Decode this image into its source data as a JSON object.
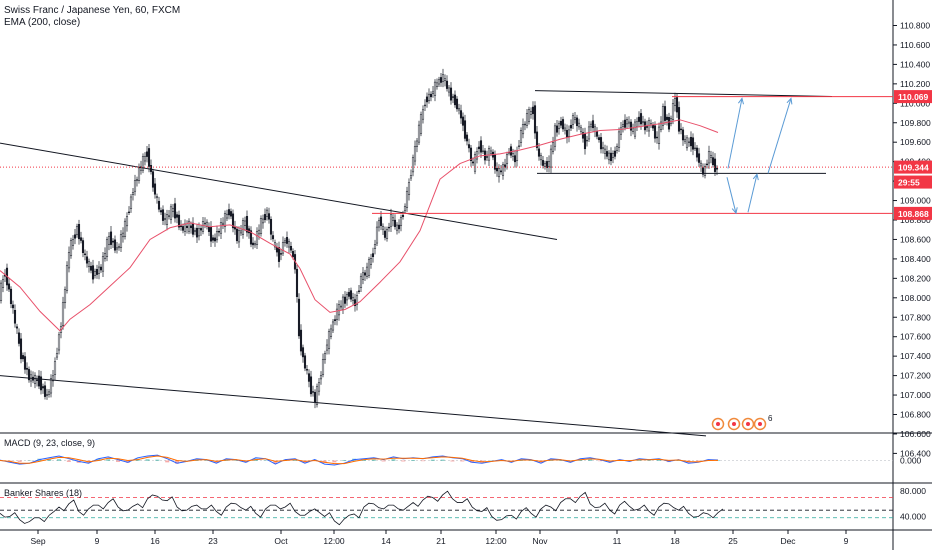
{
  "header": {
    "title": "Swiss Franc / Japanese Yen, 60, FXCM",
    "indicator": "EMA (200, close)"
  },
  "chart_data": [
    {
      "type": "candlestick",
      "symbol": "Swiss Franc / Japanese Yen",
      "interval": "60",
      "source": "FXCM",
      "y_ticks": [
        110.8,
        110.6,
        110.4,
        110.2,
        110.0,
        109.8,
        109.6,
        109.4,
        109.2,
        109.0,
        108.8,
        108.6,
        108.4,
        108.2,
        108.0,
        107.8,
        107.6,
        107.4,
        107.2,
        107.0,
        106.8,
        106.6,
        106.4
      ],
      "y_tick_labels": [
        "110.800",
        "110.600",
        "110.400",
        "110.200",
        "110.000",
        "109.800",
        "109.600",
        "109.400",
        "109.200",
        "109.000",
        "108.800",
        "108.600",
        "108.400",
        "108.200",
        "108.000",
        "107.800",
        "107.600",
        "107.400",
        "107.200",
        "107.000",
        "106.800",
        "106.600",
        "106.400"
      ],
      "ylim": [
        106.38,
        110.88
      ],
      "x_ticks": [
        "Sep",
        "9",
        "16",
        "23",
        "Oct",
        "12:00",
        "14",
        "21",
        "12:00",
        "Nov",
        "11",
        "18",
        "25",
        "Dec",
        "9"
      ],
      "price_path": [
        [
          0,
          108.02
        ],
        [
          6,
          108.27
        ],
        [
          14,
          107.86
        ],
        [
          22,
          107.42
        ],
        [
          30,
          107.18
        ],
        [
          40,
          107.14
        ],
        [
          48,
          106.98
        ],
        [
          54,
          107.21
        ],
        [
          62,
          107.74
        ],
        [
          70,
          108.48
        ],
        [
          78,
          108.72
        ],
        [
          86,
          108.41
        ],
        [
          94,
          108.24
        ],
        [
          102,
          108.31
        ],
        [
          110,
          108.63
        ],
        [
          118,
          108.49
        ],
        [
          126,
          108.74
        ],
        [
          134,
          109.12
        ],
        [
          142,
          109.36
        ],
        [
          148,
          109.5
        ],
        [
          154,
          109.16
        ],
        [
          160,
          108.91
        ],
        [
          166,
          108.79
        ],
        [
          174,
          108.92
        ],
        [
          182,
          108.71
        ],
        [
          190,
          108.74
        ],
        [
          198,
          108.66
        ],
        [
          206,
          108.78
        ],
        [
          214,
          108.58
        ],
        [
          222,
          108.74
        ],
        [
          230,
          108.9
        ],
        [
          238,
          108.61
        ],
        [
          246,
          108.79
        ],
        [
          254,
          108.52
        ],
        [
          262,
          108.77
        ],
        [
          268,
          108.89
        ],
        [
          274,
          108.57
        ],
        [
          280,
          108.42
        ],
        [
          286,
          108.61
        ],
        [
          292,
          108.49
        ],
        [
          296,
          108.33
        ],
        [
          300,
          107.62
        ],
        [
          304,
          107.38
        ],
        [
          308,
          107.22
        ],
        [
          312,
          107.06
        ],
        [
          316,
          106.95
        ],
        [
          320,
          107.13
        ],
        [
          326,
          107.45
        ],
        [
          332,
          107.68
        ],
        [
          338,
          107.86
        ],
        [
          344,
          107.96
        ],
        [
          350,
          108.05
        ],
        [
          356,
          107.93
        ],
        [
          362,
          108.21
        ],
        [
          368,
          108.28
        ],
        [
          374,
          108.47
        ],
        [
          380,
          108.82
        ],
        [
          386,
          108.62
        ],
        [
          392,
          108.83
        ],
        [
          398,
          108.7
        ],
        [
          404,
          108.87
        ],
        [
          408,
          109.06
        ],
        [
          414,
          109.43
        ],
        [
          420,
          109.74
        ],
        [
          426,
          110.03
        ],
        [
          432,
          110.09
        ],
        [
          438,
          110.21
        ],
        [
          444,
          110.27
        ],
        [
          450,
          110.11
        ],
        [
          456,
          110.02
        ],
        [
          462,
          109.86
        ],
        [
          468,
          109.6
        ],
        [
          474,
          109.35
        ],
        [
          480,
          109.58
        ],
        [
          486,
          109.44
        ],
        [
          492,
          109.51
        ],
        [
          498,
          109.28
        ],
        [
          504,
          109.32
        ],
        [
          510,
          109.53
        ],
        [
          516,
          109.41
        ],
        [
          522,
          109.71
        ],
        [
          528,
          109.86
        ],
        [
          534,
          109.94
        ],
        [
          538,
          109.52
        ],
        [
          544,
          109.36
        ],
        [
          550,
          109.38
        ],
        [
          556,
          109.72
        ],
        [
          562,
          109.81
        ],
        [
          568,
          109.66
        ],
        [
          574,
          109.86
        ],
        [
          580,
          109.76
        ],
        [
          586,
          109.58
        ],
        [
          592,
          109.81
        ],
        [
          598,
          109.66
        ],
        [
          604,
          109.52
        ],
        [
          610,
          109.44
        ],
        [
          616,
          109.49
        ],
        [
          622,
          109.76
        ],
        [
          628,
          109.82
        ],
        [
          634,
          109.71
        ],
        [
          640,
          109.86
        ],
        [
          646,
          109.75
        ],
        [
          652,
          109.79
        ],
        [
          658,
          109.62
        ],
        [
          664,
          109.92
        ],
        [
          670,
          109.77
        ],
        [
          676,
          110.06
        ],
        [
          680,
          109.76
        ],
        [
          686,
          109.59
        ],
        [
          692,
          109.61
        ],
        [
          698,
          109.47
        ],
        [
          704,
          109.27
        ],
        [
          710,
          109.48
        ],
        [
          714,
          109.38
        ],
        [
          718,
          109.31
        ]
      ],
      "ema_path": [
        [
          0,
          108.28
        ],
        [
          20,
          108.11
        ],
        [
          40,
          107.86
        ],
        [
          60,
          107.66
        ],
        [
          70,
          107.78
        ],
        [
          90,
          107.93
        ],
        [
          110,
          108.12
        ],
        [
          130,
          108.31
        ],
        [
          150,
          108.6
        ],
        [
          170,
          108.72
        ],
        [
          190,
          108.77
        ],
        [
          210,
          108.73
        ],
        [
          230,
          108.75
        ],
        [
          250,
          108.68
        ],
        [
          270,
          108.56
        ],
        [
          290,
          108.45
        ],
        [
          300,
          108.3
        ],
        [
          315,
          107.98
        ],
        [
          330,
          107.85
        ],
        [
          345,
          107.88
        ],
        [
          360,
          107.96
        ],
        [
          380,
          108.16
        ],
        [
          400,
          108.37
        ],
        [
          420,
          108.69
        ],
        [
          440,
          109.22
        ],
        [
          460,
          109.38
        ],
        [
          480,
          109.46
        ],
        [
          500,
          109.48
        ],
        [
          520,
          109.52
        ],
        [
          540,
          109.57
        ],
        [
          560,
          109.63
        ],
        [
          580,
          109.68
        ],
        [
          600,
          109.72
        ],
        [
          620,
          109.73
        ],
        [
          640,
          109.76
        ],
        [
          660,
          109.79
        ],
        [
          680,
          109.83
        ],
        [
          700,
          109.77
        ],
        [
          718,
          109.7
        ]
      ],
      "trendlines": [
        {
          "from": [
            0,
            109.59
          ],
          "to": [
            557,
            108.6
          ]
        },
        {
          "from": [
            0,
            107.2
          ],
          "to": [
            706,
            106.58
          ]
        },
        {
          "from": [
            535,
            110.13
          ],
          "to": [
            832,
            110.07
          ]
        },
        {
          "from": [
            537,
            109.28
          ],
          "to": [
            826,
            109.28
          ]
        }
      ],
      "horizontal_lines": [
        {
          "price": 110.069,
          "label": "110.069",
          "color": "#f23645"
        },
        {
          "price": 108.868,
          "label": "108.868",
          "color": "#f23645"
        },
        {
          "price": 109.344,
          "label": "109.344",
          "color": "#f23645",
          "dotted": true
        }
      ],
      "projection_arrows": [
        {
          "from": [
            728,
            109.33
          ],
          "to": [
            742,
            110.05
          ]
        },
        {
          "from": [
            768,
            109.28
          ],
          "to": [
            791,
            110.05
          ]
        },
        {
          "from": [
            727,
            109.24
          ],
          "to": [
            736,
            108.87
          ]
        },
        {
          "from": [
            748,
            108.88
          ],
          "to": [
            757,
            109.27
          ]
        }
      ],
      "price_labels": [
        {
          "text": "110.069",
          "price": 110.069,
          "color": "#f23645"
        },
        {
          "text": "109.344",
          "price": 109.344,
          "color": "#f23645"
        },
        {
          "text": "29:55",
          "price": 109.19,
          "color": "#f23645"
        },
        {
          "text": "108.868",
          "price": 108.868,
          "color": "#f23645"
        }
      ],
      "annotation": "6"
    },
    {
      "type": "line",
      "name": "MACD (9, 23, close, 9)",
      "y_tick_labels": [
        "0.000"
      ],
      "ylim": [
        -1,
        1
      ],
      "macd": [
        0.05,
        -0.2,
        -0.4,
        -0.3,
        0.1,
        0.3,
        0.5,
        0.2,
        -0.1,
        -0.3,
        0.2,
        0.4,
        0.1,
        -0.2,
        0.3,
        0.5,
        0.6,
        0.2,
        -0.3,
        -0.1,
        0.2,
        0.1,
        -0.3,
        0.2,
        0.1,
        -0.2,
        0.3,
        0.2,
        -0.4,
        0.1,
        0.2,
        -0.3,
        0.1,
        -0.4,
        -0.5,
        -0.3,
        0.1,
        0.2,
        0.3,
        0.1,
        0.4,
        0.2,
        0.3,
        0.2,
        0.4,
        0.5,
        0.3,
        0.2,
        -0.2,
        -0.3,
        -0.1,
        0.1,
        -0.2,
        0.2,
        0.1,
        -0.3,
        0.2,
        0.1,
        -0.2,
        0.2,
        0.3,
        0.1,
        -0.2,
        0.1,
        -0.1,
        0.2,
        0.1,
        0.2,
        -0.1,
        0.1,
        -0.3,
        -0.2,
        0.1,
        0.05
      ],
      "signal": [
        0.0,
        -0.1,
        -0.3,
        -0.3,
        -0.1,
        0.15,
        0.35,
        0.3,
        0.1,
        -0.15,
        0.0,
        0.25,
        0.2,
        0.0,
        0.1,
        0.35,
        0.5,
        0.35,
        0.0,
        -0.1,
        0.05,
        0.1,
        -0.1,
        0.05,
        0.1,
        -0.05,
        0.1,
        0.2,
        -0.1,
        0.0,
        0.1,
        -0.1,
        0.0,
        -0.2,
        -0.35,
        -0.35,
        -0.1,
        0.1,
        0.2,
        0.15,
        0.25,
        0.25,
        0.25,
        0.22,
        0.3,
        0.4,
        0.35,
        0.25,
        0.0,
        -0.15,
        -0.1,
        0.0,
        -0.1,
        0.05,
        0.05,
        -0.1,
        0.05,
        0.08,
        -0.05,
        0.08,
        0.18,
        0.12,
        -0.05,
        0.02,
        -0.02,
        0.08,
        0.08,
        0.12,
        0.02,
        0.05,
        -0.12,
        -0.15,
        0.0,
        0.02
      ]
    },
    {
      "type": "line",
      "name": "Banker Shares (18)",
      "y_tick_labels": [
        "80.000",
        "40.000"
      ],
      "ylim": [
        25,
        85
      ],
      "levels": [
        70,
        50,
        38
      ],
      "values": [
        45,
        40,
        35,
        32,
        38,
        42,
        55,
        60,
        48,
        52,
        58,
        62,
        55,
        50,
        60,
        68,
        72,
        65,
        55,
        50,
        58,
        52,
        48,
        55,
        60,
        50,
        45,
        52,
        58,
        55,
        48,
        42,
        52,
        40,
        33,
        36,
        44,
        55,
        60,
        52,
        58,
        50,
        62,
        66,
        70,
        74,
        68,
        62,
        55,
        48,
        40,
        35,
        42,
        48,
        45,
        52,
        55,
        62,
        68,
        72,
        60,
        55,
        50,
        58,
        56,
        52,
        48,
        55,
        60,
        50,
        45,
        40,
        44,
        46
      ]
    }
  ]
}
